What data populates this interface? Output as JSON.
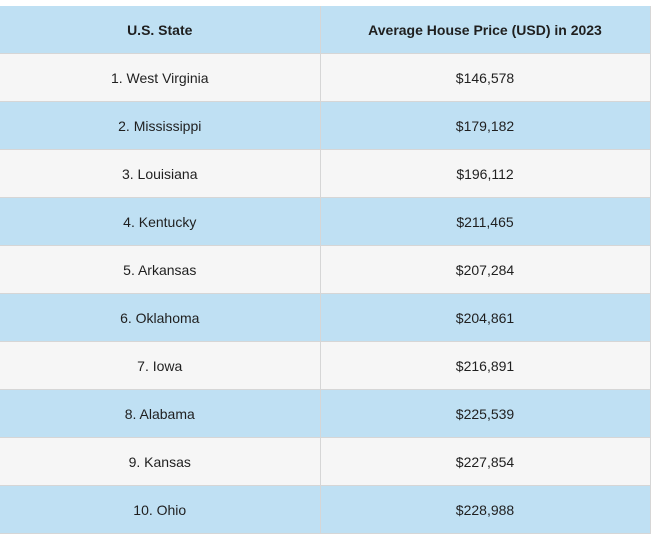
{
  "table": {
    "headers": [
      "U.S. State",
      "Average House Price (USD) in 2023"
    ],
    "rows": [
      {
        "state": "1. West Virginia",
        "price": "$146,578"
      },
      {
        "state": "2. Mississippi",
        "price": "$179,182"
      },
      {
        "state": "3. Louisiana",
        "price": "$196,112"
      },
      {
        "state": "4. Kentucky",
        "price": "$211,465"
      },
      {
        "state": "5. Arkansas",
        "price": "$207,284"
      },
      {
        "state": "6. Oklahoma",
        "price": "$204,861"
      },
      {
        "state": "7. Iowa",
        "price": "$216,891"
      },
      {
        "state": "8. Alabama",
        "price": "$225,539"
      },
      {
        "state": "9. Kansas",
        "price": "$227,854"
      },
      {
        "state": "10. Ohio",
        "price": "$228,988"
      }
    ]
  },
  "colors": {
    "header_bg": "#bfe0f3",
    "row_light": "#f6f6f6",
    "row_blue": "#bfe0f3"
  }
}
